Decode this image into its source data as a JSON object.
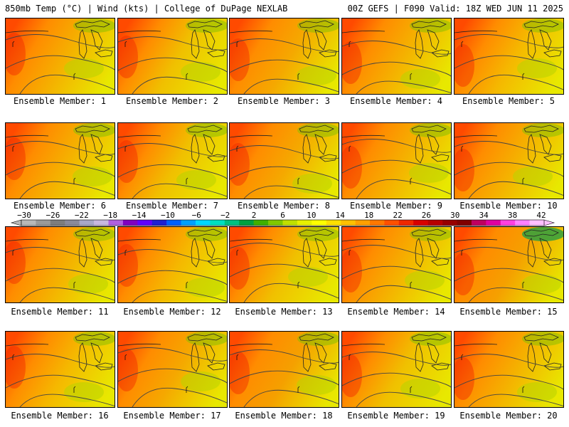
{
  "header": {
    "left": "850mb Temp (°C) | Wind (kts) | College of DuPage NEXLAB",
    "right": "00Z GEFS | F090 Valid: 18Z WED JUN 11 2025"
  },
  "colorbar": {
    "labels": [
      "−30",
      "−26",
      "−22",
      "−18",
      "−14",
      "−10",
      "−6",
      "−2",
      "2",
      "6",
      "10",
      "14",
      "18",
      "22",
      "26",
      "30",
      "34",
      "38",
      "42"
    ],
    "colors": [
      "#b8b8b8",
      "#9a9a9a",
      "#7d7d7d",
      "#8a8a9a",
      "#a8a8c8",
      "#c8b8e0",
      "#b060e0",
      "#8000c0",
      "#6000ff",
      "#2020d0",
      "#0060ff",
      "#00a0ff",
      "#00d8ff",
      "#00e0c0",
      "#00c080",
      "#00a040",
      "#40b000",
      "#80c800",
      "#c0e000",
      "#e8f000",
      "#ffff00",
      "#ffe000",
      "#ffc000",
      "#ffa000",
      "#ff7800",
      "#ff5000",
      "#f02800",
      "#d80000",
      "#b80000",
      "#980000",
      "#800000",
      "#c00060",
      "#e000a0",
      "#ff40e0",
      "#ff80ff",
      "#ffc0ff"
    ]
  },
  "panels": [
    {
      "caption": "Ensemble Member: 1",
      "tint": "#f5b000"
    },
    {
      "caption": "Ensemble Member: 2",
      "tint": "#f0c000"
    },
    {
      "caption": "Ensemble Member: 3",
      "tint": "#f5a800"
    },
    {
      "caption": "Ensemble Member: 4",
      "tint": "#f5b000"
    },
    {
      "caption": "Ensemble Member: 5",
      "tint": "#f5b800"
    },
    {
      "caption": "Ensemble Member: 6",
      "tint": "#f5b000"
    },
    {
      "caption": "Ensemble Member: 7",
      "tint": "#f0c000"
    },
    {
      "caption": "Ensemble Member: 8",
      "tint": "#f5a800"
    },
    {
      "caption": "Ensemble Member: 9",
      "tint": "#f5b000"
    },
    {
      "caption": "Ensemble Member: 10",
      "tint": "#f5b000"
    },
    {
      "caption": "Ensemble Member: 11",
      "tint": "#f5b000"
    },
    {
      "caption": "Ensemble Member: 12",
      "tint": "#f5b800"
    },
    {
      "caption": "Ensemble Member: 13",
      "tint": "#f0c000"
    },
    {
      "caption": "Ensemble Member: 14",
      "tint": "#f5b000"
    },
    {
      "caption": "Ensemble Member: 15",
      "tint": "#f5a000"
    },
    {
      "caption": "Ensemble Member: 16",
      "tint": "#f5b800"
    },
    {
      "caption": "Ensemble Member: 17",
      "tint": "#f5a800"
    },
    {
      "caption": "Ensemble Member: 18",
      "tint": "#f5a000"
    },
    {
      "caption": "Ensemble Member: 19",
      "tint": "#f0c000"
    },
    {
      "caption": "Ensemble Member: 20",
      "tint": "#f5b000"
    }
  ]
}
